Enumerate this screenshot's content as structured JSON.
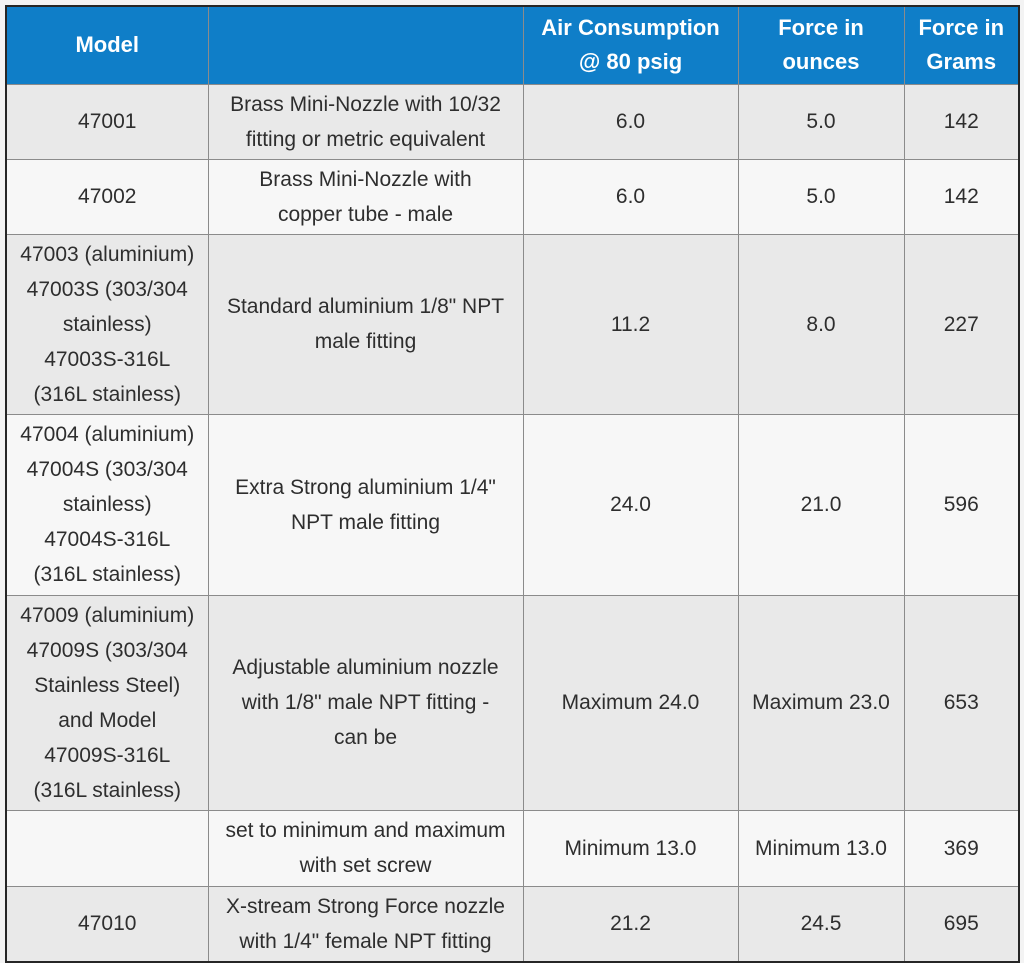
{
  "colors": {
    "page_bg": "#f3f3f3",
    "header_bg": "#0f7ec8",
    "header_text": "#ffffff",
    "row_odd_bg": "#e9e9e9",
    "row_even_bg": "#f7f7f7",
    "border_inner": "#8b8b8b",
    "border_outer": "#262626",
    "body_text": "#2e2e2e"
  },
  "table": {
    "headers": {
      "model": "Model",
      "description": "",
      "air_consumption": "Air Consumption\n@ 80 psig",
      "force_ounces": "Force in\nounces",
      "force_grams": "Force in\nGrams"
    },
    "rows": [
      {
        "model": "47001",
        "description": "Brass Mini-Nozzle with 10/32\nfitting or metric equivalent",
        "air_consumption": "6.0",
        "force_ounces": "5.0",
        "force_grams": "142"
      },
      {
        "model": "47002",
        "description": "Brass Mini-Nozzle with\ncopper tube - male",
        "air_consumption": "6.0",
        "force_ounces": "5.0",
        "force_grams": "142"
      },
      {
        "model": "47003 (aluminium)\n47003S (303/304\nstainless)\n47003S-316L\n(316L stainless)",
        "description": "Standard aluminium 1/8\" NPT\nmale fitting",
        "air_consumption": "11.2",
        "force_ounces": "8.0",
        "force_grams": "227"
      },
      {
        "model": "47004 (aluminium)\n47004S (303/304\nstainless)\n47004S-316L\n(316L stainless)",
        "description": "Extra Strong aluminium 1/4\"\nNPT male fitting",
        "air_consumption": "24.0",
        "force_ounces": "21.0",
        "force_grams": "596"
      },
      {
        "model": "47009 (aluminium)\n47009S (303/304\nStainless Steel)\nand Model\n47009S-316L\n(316L stainless)",
        "description": "Adjustable aluminium nozzle\nwith 1/8\" male NPT fitting -\ncan be",
        "air_consumption": "Maximum 24.0",
        "force_ounces": "Maximum 23.0",
        "force_grams": "653"
      },
      {
        "model": "",
        "description": "set to minimum and maximum\nwith set screw",
        "air_consumption": "Minimum 13.0",
        "force_ounces": "Minimum 13.0",
        "force_grams": "369"
      },
      {
        "model": "47010",
        "description": "X-stream Strong Force nozzle\nwith 1/4\" female NPT fitting",
        "air_consumption": "21.2",
        "force_ounces": "24.5",
        "force_grams": "695"
      }
    ]
  }
}
